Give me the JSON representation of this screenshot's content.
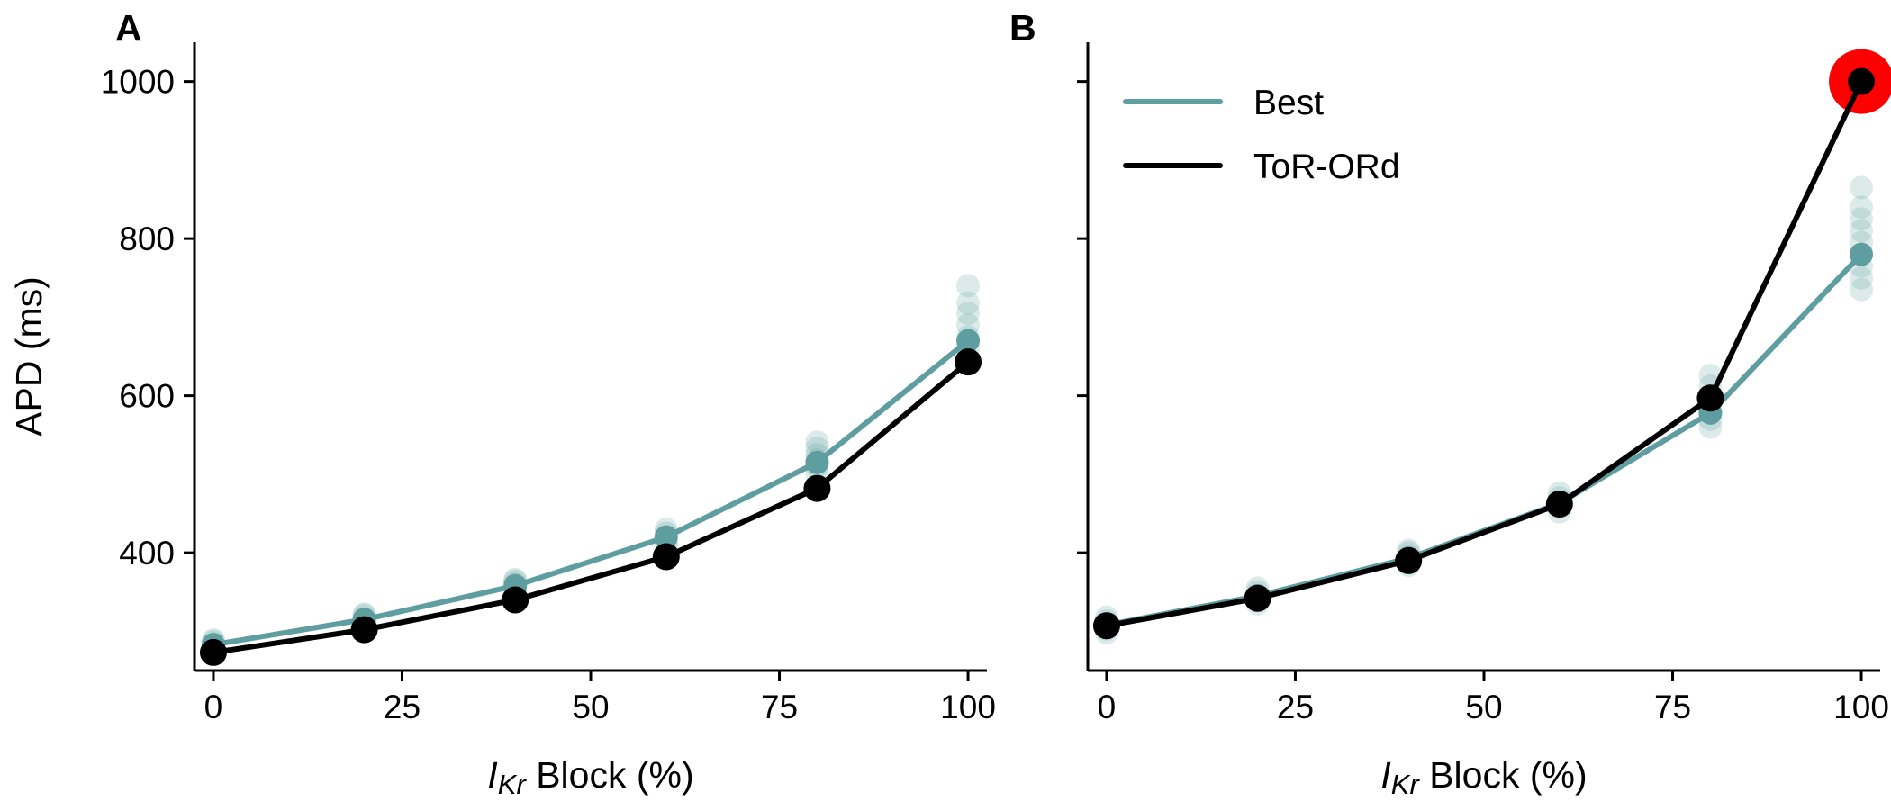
{
  "colors": {
    "best": "#5f9ea0",
    "tor_ord": "#000000",
    "highlight": "#ff0000"
  },
  "legend": {
    "best_label": "Best",
    "tor_ord_label": "ToR-ORd"
  },
  "y_axis": {
    "label": "APD (ms)",
    "ticks": [
      400,
      600,
      800,
      1000
    ],
    "ylim": [
      250,
      1050
    ]
  },
  "x_axis": {
    "label_main": "I",
    "label_subscript": "Kr",
    "label_rest": " Block (%)",
    "ticks": [
      0,
      25,
      50,
      75,
      100
    ],
    "xlim": [
      -2.5,
      102.5
    ]
  },
  "chart_data": [
    {
      "panel": "A",
      "type": "line",
      "x": [
        0,
        20,
        40,
        60,
        80,
        100
      ],
      "series": [
        {
          "name": "Best",
          "values": [
            283,
            315,
            358,
            420,
            515,
            670
          ]
        },
        {
          "name": "ToR-ORd",
          "values": [
            273,
            302,
            340,
            395,
            482,
            643
          ]
        }
      ],
      "scatter_spread": [
        {
          "x": 0,
          "values": [
            278,
            281,
            284,
            287,
            289
          ]
        },
        {
          "x": 20,
          "values": [
            308,
            312,
            316,
            320,
            322
          ]
        },
        {
          "x": 40,
          "values": [
            350,
            355,
            360,
            364,
            366
          ]
        },
        {
          "x": 60,
          "values": [
            410,
            415,
            420,
            425,
            430
          ]
        },
        {
          "x": 80,
          "values": [
            500,
            510,
            518,
            525,
            533,
            541
          ]
        },
        {
          "x": 100,
          "values": [
            645,
            660,
            675,
            690,
            705,
            718,
            740
          ]
        }
      ],
      "highlight_point": null
    },
    {
      "panel": "B",
      "type": "line",
      "x": [
        0,
        20,
        40,
        60,
        80,
        100
      ],
      "series": [
        {
          "name": "Best",
          "values": [
            308,
            345,
            393,
            463,
            578,
            780
          ]
        },
        {
          "name": "ToR-ORd",
          "values": [
            307,
            342,
            390,
            462,
            597,
            1000
          ]
        }
      ],
      "scatter_spread": [
        {
          "x": 0,
          "values": [
            298,
            303,
            308,
            313,
            318
          ]
        },
        {
          "x": 20,
          "values": [
            335,
            340,
            345,
            350,
            355
          ]
        },
        {
          "x": 40,
          "values": [
            384,
            390,
            395,
            400,
            403
          ]
        },
        {
          "x": 60,
          "values": [
            452,
            458,
            464,
            470,
            476
          ]
        },
        {
          "x": 80,
          "values": [
            560,
            570,
            580,
            590,
            600,
            612,
            626
          ]
        },
        {
          "x": 100,
          "values": [
            735,
            750,
            765,
            780,
            795,
            810,
            825,
            840,
            865
          ]
        }
      ],
      "highlight_point": {
        "x": 100,
        "y": 1000
      }
    }
  ]
}
